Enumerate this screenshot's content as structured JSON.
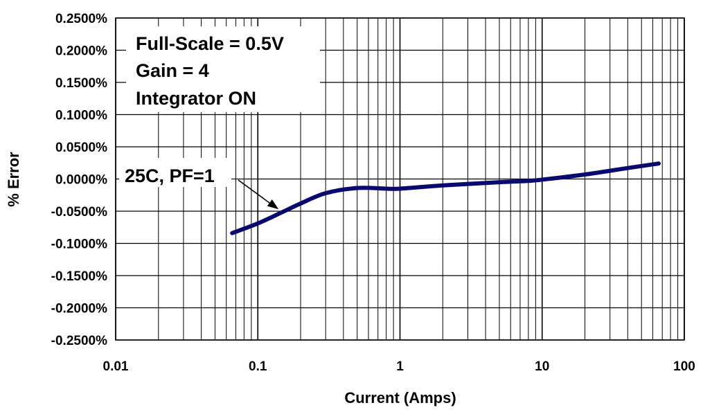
{
  "chart_data": {
    "type": "line",
    "x_scale": "log",
    "xlim": [
      0.01,
      100
    ],
    "ylim": [
      -0.25,
      0.25
    ],
    "x_tick_labels": [
      "0.01",
      "0.1",
      "1",
      "10",
      "100"
    ],
    "x_tick_values": [
      0.01,
      0.1,
      1,
      10,
      100
    ],
    "y_tick_values": [
      0.25,
      0.2,
      0.15,
      0.1,
      0.05,
      0,
      -0.05,
      -0.1,
      -0.15,
      -0.2,
      -0.25
    ],
    "y_tick_labels": [
      "0.2500%",
      "0.2000%",
      "0.1500%",
      "0.1000%",
      "0.0500%",
      "0.0000%",
      "-0.0500%",
      "-0.1000%",
      "-0.1500%",
      "-0.2000%",
      "-0.2500%"
    ],
    "xlabel": "Current (Amps)",
    "ylabel": "% Error",
    "grid": true,
    "series": [
      {
        "name": "25C, PF=1",
        "color": "#0a0a6e",
        "x": [
          0.066,
          0.1,
          0.15,
          0.2,
          0.3,
          0.5,
          0.8,
          1.0,
          2.0,
          5.0,
          8.0,
          10.0,
          20.0,
          40.0,
          66.0
        ],
        "y": [
          -0.084,
          -0.069,
          -0.051,
          -0.038,
          -0.022,
          -0.014,
          -0.015,
          -0.015,
          -0.01,
          -0.005,
          -0.003,
          -0.001,
          0.007,
          0.017,
          0.024
        ]
      }
    ],
    "annotations": [
      {
        "lines": [
          "Full-Scale = 0.5V",
          "Gain = 4",
          "Integrator ON"
        ]
      },
      {
        "text": "25C, PF=1",
        "arrow_to": {
          "x": 0.14,
          "y": -0.047
        }
      }
    ]
  }
}
